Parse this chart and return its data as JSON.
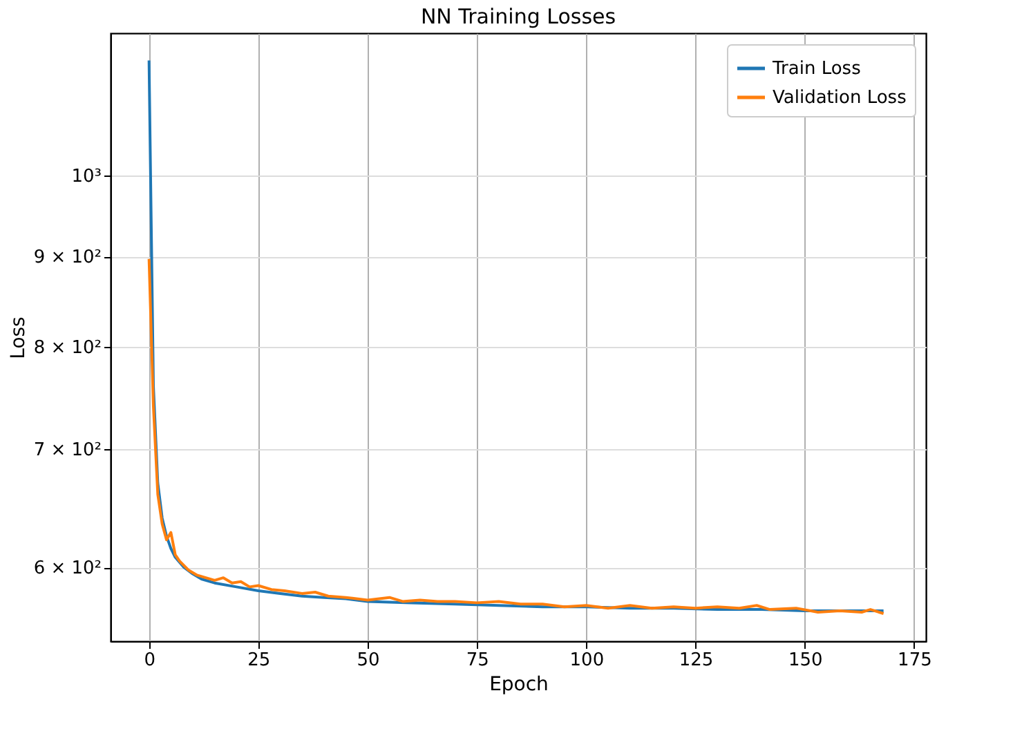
{
  "chart_data": {
    "type": "line",
    "title": "NN Training Losses",
    "xlabel": "Epoch",
    "ylabel": "Loss",
    "log": true,
    "grid": true,
    "legend": "top right",
    "line_style": "solid",
    "marker": "none",
    "xlim": [
      -8.8,
      177.7
    ],
    "xticks": [
      0,
      25,
      50,
      75,
      100,
      125,
      150,
      175
    ],
    "ylim": [
      545,
      1204
    ],
    "yticks": [
      {
        "value": 600,
        "label": "6 × 10²"
      },
      {
        "value": 700,
        "label": "7 × 10²"
      },
      {
        "value": 800,
        "label": "8 × 10²"
      },
      {
        "value": 900,
        "label": "9 × 10²"
      },
      {
        "value": 1000,
        "label": "10³"
      }
    ],
    "series": [
      {
        "name": "Train Loss",
        "color": "#1f77b4",
        "x": [
          0,
          1,
          2,
          3,
          4,
          5,
          6,
          8,
          10,
          12,
          15,
          20,
          25,
          30,
          35,
          40,
          45,
          50,
          60,
          70,
          80,
          90,
          100,
          110,
          120,
          130,
          140,
          150,
          160,
          168
        ],
        "values": [
          1162,
          760,
          670,
          640,
          625,
          615,
          608,
          600,
          595,
          591,
          588,
          585,
          582,
          580,
          578,
          577,
          576,
          574,
          573,
          572,
          571,
          570,
          570,
          569,
          569,
          568,
          568,
          567,
          567,
          567
        ]
      },
      {
        "name": "Validation Loss",
        "color": "#ff7f0e",
        "x": [
          0,
          1,
          2,
          3,
          4,
          5,
          6,
          7,
          9,
          11,
          13,
          15,
          17,
          19,
          21,
          23,
          25,
          28,
          31,
          35,
          38,
          41,
          45,
          50,
          55,
          58,
          62,
          66,
          70,
          75,
          80,
          85,
          90,
          95,
          100,
          105,
          110,
          115,
          120,
          125,
          130,
          135,
          139,
          142,
          148,
          153,
          158,
          163,
          165,
          168
        ],
        "values": [
          897,
          740,
          660,
          635,
          622,
          628,
          610,
          605,
          598,
          594,
          592,
          590,
          592,
          588,
          589,
          585,
          586,
          583,
          582,
          580,
          581,
          578,
          577,
          575,
          577,
          574,
          575,
          574,
          574,
          573,
          574,
          572,
          572,
          570,
          571,
          569,
          571,
          569,
          570,
          569,
          570,
          569,
          571,
          568,
          569,
          566,
          567,
          566,
          568,
          565
        ]
      }
    ]
  }
}
